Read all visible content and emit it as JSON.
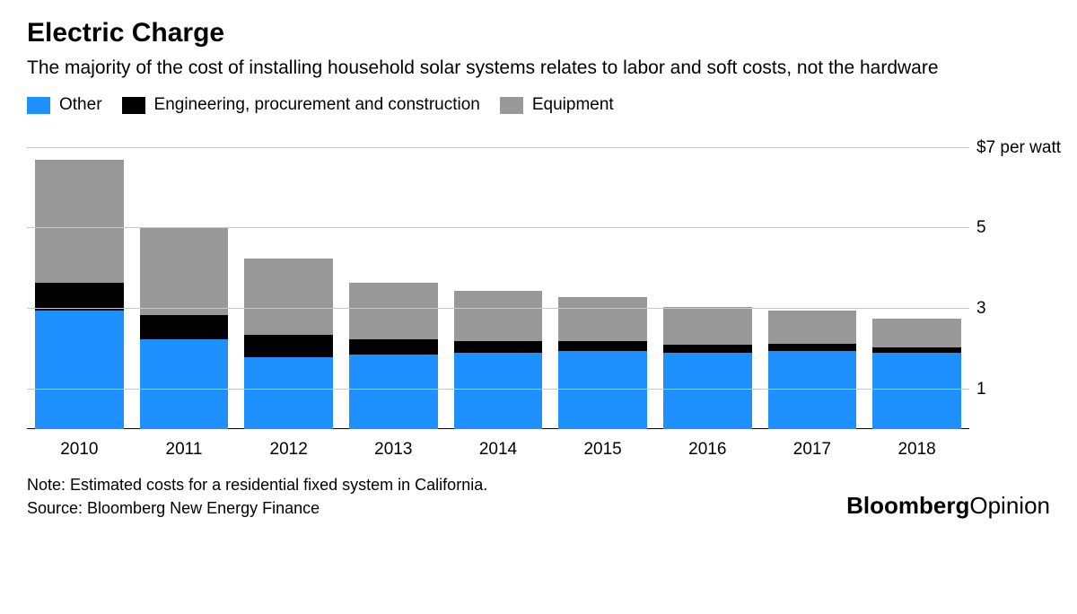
{
  "title": "Electric Charge",
  "subtitle": "The majority of the cost of installing household solar systems relates to labor and soft costs, not the hardware",
  "legend": [
    {
      "label": "Other",
      "color": "#1e90ff"
    },
    {
      "label": "Engineering, procurement and construction",
      "color": "#000000"
    },
    {
      "label": "Equipment",
      "color": "#999999"
    }
  ],
  "chart": {
    "type": "stacked-bar",
    "ymax": 7.5,
    "background_color": "#ffffff",
    "grid_color": "#c9c9c9",
    "baseline_color": "#000000",
    "bar_width_pct": 9.4,
    "yticks": [
      1,
      3,
      5,
      7
    ],
    "ytick_labels": [
      "1",
      "3",
      "5",
      "$7 per watt"
    ],
    "categories": [
      "2010",
      "2011",
      "2012",
      "2013",
      "2014",
      "2015",
      "2016",
      "2017",
      "2018"
    ],
    "series_colors": {
      "other": "#1e90ff",
      "epc": "#000000",
      "equipment": "#999999"
    },
    "data": [
      {
        "other": 2.95,
        "epc": 0.7,
        "equipment": 3.05
      },
      {
        "other": 2.25,
        "epc": 0.6,
        "equipment": 2.15
      },
      {
        "other": 1.8,
        "epc": 0.55,
        "equipment": 1.9
      },
      {
        "other": 1.85,
        "epc": 0.4,
        "equipment": 1.4
      },
      {
        "other": 1.9,
        "epc": 0.3,
        "equipment": 1.25
      },
      {
        "other": 1.95,
        "epc": 0.25,
        "equipment": 1.1
      },
      {
        "other": 1.9,
        "epc": 0.2,
        "equipment": 0.95
      },
      {
        "other": 1.95,
        "epc": 0.18,
        "equipment": 0.82
      },
      {
        "other": 1.9,
        "epc": 0.15,
        "equipment": 0.7
      }
    ],
    "label_fontsize": 19
  },
  "note": "Note: Estimated costs for a residential fixed system in California.",
  "source": "Source: Bloomberg New Energy Finance",
  "brand_bold": "Bloomberg",
  "brand_light": "Opinion"
}
